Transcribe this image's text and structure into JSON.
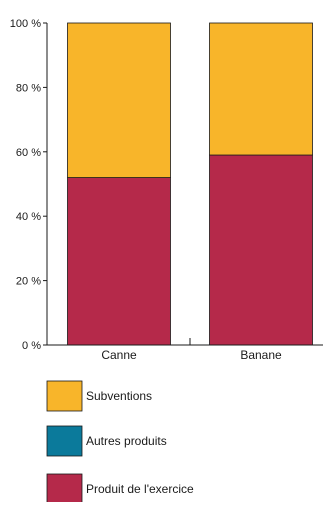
{
  "chart_data": {
    "type": "bar",
    "stacked": true,
    "categories": [
      "Canne",
      "Banane"
    ],
    "series": [
      {
        "name": "Produit de l'exercice",
        "color": "#b5294a",
        "values": [
          52,
          59
        ]
      },
      {
        "name": "Autres produits",
        "color": "#0b7a9b",
        "values": [
          0,
          0
        ]
      },
      {
        "name": "Subventions",
        "color": "#f8b52a",
        "values": [
          48,
          41
        ]
      }
    ],
    "y_ticks": [
      0,
      20,
      40,
      60,
      80,
      100
    ],
    "y_tick_labels": [
      "0 %",
      "20 %",
      "40 %",
      "60 %",
      "80 %",
      "100 %"
    ],
    "ylim": [
      0,
      100
    ],
    "legend_position": "bottom",
    "legend_order": [
      "Subventions",
      "Autres produits",
      "Produit de l'exercice"
    ],
    "grid": false
  }
}
